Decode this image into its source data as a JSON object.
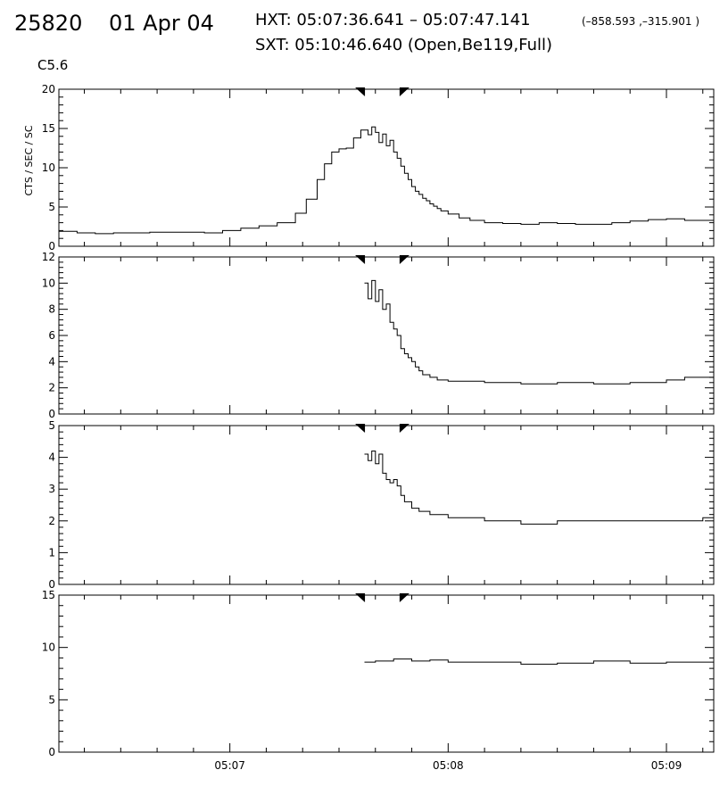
{
  "header": {
    "id": "25820",
    "date": "01 Apr 04",
    "hxt": "HXT: 05:07:36.641 – 05:07:47.141",
    "coords": "(–858.593 ,–315.901 )",
    "sxt": "SXT: 05:10:46.640 (Open,Be119,Full)",
    "goes_class": "C5.6"
  },
  "chart_data": [
    {
      "type": "line",
      "step": true,
      "panel": 1,
      "ylabel": "CTS / SEC / SC",
      "ylim": [
        0,
        20
      ],
      "yticks": [
        0,
        5,
        10,
        15,
        20
      ],
      "xlim": [
        "05:06:13",
        "05:09:13"
      ],
      "xticks": [
        "05:07",
        "05:08",
        "05:09"
      ],
      "markers": [
        "05:07:36.641",
        "05:07:47.141"
      ],
      "series": [
        {
          "x": [
            "05:06:13",
            "05:06:18",
            "05:06:23",
            "05:06:28",
            "05:06:33",
            "05:06:38",
            "05:06:43",
            "05:06:48",
            "05:06:53",
            "05:06:58",
            "05:07:03",
            "05:07:08",
            "05:07:13",
            "05:07:18",
            "05:07:21",
            "05:07:24",
            "05:07:26",
            "05:07:28",
            "05:07:30",
            "05:07:32",
            "05:07:34",
            "05:07:36",
            "05:07:38",
            "05:07:39",
            "05:07:40",
            "05:07:41",
            "05:07:42",
            "05:07:43",
            "05:07:44",
            "05:07:45",
            "05:07:46",
            "05:07:47",
            "05:07:48",
            "05:07:49",
            "05:07:50",
            "05:07:51",
            "05:07:52",
            "05:07:53",
            "05:07:54",
            "05:07:55",
            "05:07:56",
            "05:07:57",
            "05:07:58",
            "05:08:00",
            "05:08:03",
            "05:08:06",
            "05:08:10",
            "05:08:15",
            "05:08:20",
            "05:08:25",
            "05:08:30",
            "05:08:35",
            "05:08:40",
            "05:08:45",
            "05:08:50",
            "05:08:55",
            "05:09:00",
            "05:09:05",
            "05:09:10"
          ],
          "y": [
            1.9,
            1.7,
            1.6,
            1.7,
            1.7,
            1.8,
            1.8,
            1.8,
            1.7,
            2.0,
            2.3,
            2.6,
            3.0,
            4.2,
            6.0,
            8.5,
            10.5,
            12.0,
            12.4,
            12.5,
            13.8,
            14.8,
            14.2,
            15.2,
            14.5,
            13.2,
            14.3,
            12.8,
            13.5,
            12.0,
            11.2,
            10.2,
            9.3,
            8.5,
            7.6,
            7.0,
            6.6,
            6.1,
            5.8,
            5.4,
            5.1,
            4.8,
            4.5,
            4.1,
            3.6,
            3.3,
            3.0,
            2.9,
            2.8,
            3.0,
            2.9,
            2.8,
            2.8,
            3.0,
            3.2,
            3.4,
            3.5,
            3.3,
            3.3
          ]
        }
      ]
    },
    {
      "type": "line",
      "step": true,
      "panel": 2,
      "ylim": [
        0,
        12
      ],
      "yticks": [
        0,
        2,
        4,
        6,
        8,
        10,
        12
      ],
      "xlim": [
        "05:06:13",
        "05:09:13"
      ],
      "markers": [
        "05:07:36.641",
        "05:07:47.141"
      ],
      "series": [
        {
          "x": [
            "05:07:37",
            "05:07:38",
            "05:07:39",
            "05:07:40",
            "05:07:41",
            "05:07:42",
            "05:07:43",
            "05:07:44",
            "05:07:45",
            "05:07:46",
            "05:07:47",
            "05:07:48",
            "05:07:49",
            "05:07:50",
            "05:07:51",
            "05:07:52",
            "05:07:53",
            "05:07:55",
            "05:07:57",
            "05:08:00",
            "05:08:05",
            "05:08:10",
            "05:08:20",
            "05:08:30",
            "05:08:40",
            "05:08:50",
            "05:09:00",
            "05:09:05",
            "05:09:10",
            "05:09:13"
          ],
          "y": [
            10.0,
            8.8,
            10.2,
            8.6,
            9.5,
            8.0,
            8.4,
            7.0,
            6.5,
            6.0,
            5.0,
            4.6,
            4.3,
            4.0,
            3.6,
            3.3,
            3.0,
            2.8,
            2.6,
            2.5,
            2.5,
            2.4,
            2.3,
            2.4,
            2.3,
            2.4,
            2.6,
            2.8,
            2.8,
            2.7
          ]
        }
      ]
    },
    {
      "type": "line",
      "step": true,
      "panel": 3,
      "ylim": [
        0,
        5
      ],
      "yticks": [
        0,
        1,
        2,
        3,
        4,
        5
      ],
      "xlim": [
        "05:06:13",
        "05:09:13"
      ],
      "markers": [
        "05:07:36.641",
        "05:07:47.141"
      ],
      "series": [
        {
          "x": [
            "05:07:37",
            "05:07:38",
            "05:07:39",
            "05:07:40",
            "05:07:41",
            "05:07:42",
            "05:07:43",
            "05:07:44",
            "05:07:45",
            "05:07:46",
            "05:07:47",
            "05:07:48",
            "05:07:50",
            "05:07:52",
            "05:07:55",
            "05:08:00",
            "05:08:10",
            "05:08:20",
            "05:08:30",
            "05:08:40",
            "05:08:50",
            "05:09:00",
            "05:09:10",
            "05:09:13"
          ],
          "y": [
            4.1,
            3.9,
            4.2,
            3.8,
            4.1,
            3.5,
            3.3,
            3.2,
            3.3,
            3.1,
            2.8,
            2.6,
            2.4,
            2.3,
            2.2,
            2.1,
            2.0,
            1.9,
            2.0,
            2.0,
            2.0,
            2.0,
            2.1,
            2.0
          ]
        }
      ]
    },
    {
      "type": "line",
      "step": true,
      "panel": 4,
      "ylim": [
        0,
        15
      ],
      "yticks": [
        0,
        5,
        10,
        15
      ],
      "xlim": [
        "05:06:13",
        "05:09:13"
      ],
      "xticks": [
        "05:07",
        "05:08",
        "05:09"
      ],
      "markers": [
        "05:07:36.641",
        "05:07:47.141"
      ],
      "series": [
        {
          "x": [
            "05:07:37",
            "05:07:40",
            "05:07:45",
            "05:07:50",
            "05:07:55",
            "05:08:00",
            "05:08:10",
            "05:08:20",
            "05:08:30",
            "05:08:40",
            "05:08:50",
            "05:09:00",
            "05:09:10",
            "05:09:13"
          ],
          "y": [
            8.6,
            8.7,
            8.9,
            8.7,
            8.8,
            8.6,
            8.6,
            8.4,
            8.5,
            8.7,
            8.5,
            8.6,
            8.6,
            8.5
          ]
        }
      ]
    }
  ]
}
